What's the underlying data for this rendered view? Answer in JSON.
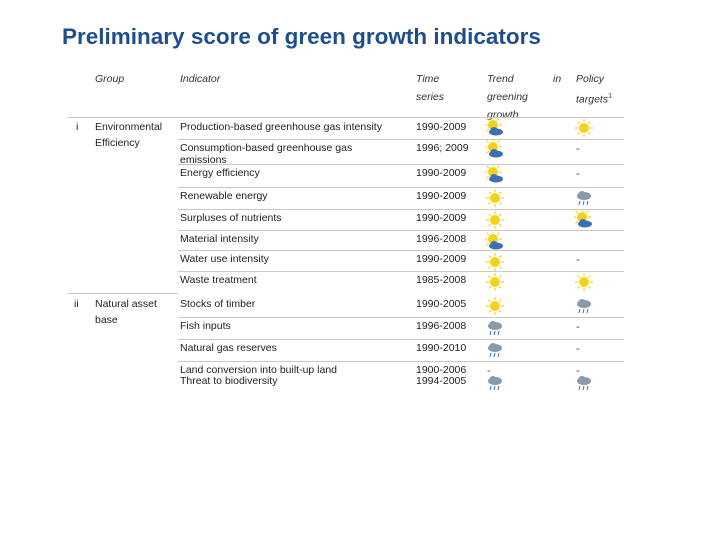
{
  "title": "Preliminary score of green growth indicators",
  "headers": {
    "group": "Group",
    "indicator": "Indicator",
    "time_l1": "Time",
    "time_l2": "series",
    "trend_l1": "Trend",
    "trend_in": "in",
    "trend_l2": "greening",
    "trend_l3": "growth",
    "policy_l1": "Policy",
    "policy_l2": "targets",
    "policy_sup": "1"
  },
  "groups": [
    {
      "num": "i",
      "name_l1": "Environmental",
      "name_l2": "Efficiency"
    },
    {
      "num": "ii",
      "name_l1": "Natural   asset",
      "name_l2": "base"
    }
  ],
  "rows": [
    {
      "indicator": "Production-based greenhouse gas intensity",
      "series": "1990-2009",
      "trend": "partly-cloudy",
      "target": "sunny"
    },
    {
      "indicator": "Consumption-based greenhouse gas",
      "indicator_l2": "emissions",
      "series": "1996; 2009",
      "trend": "partly-cloudy",
      "target": "-"
    },
    {
      "indicator": "Energy efficiency",
      "series": "1990-2009",
      "trend": "partly-cloudy",
      "target": "-"
    },
    {
      "indicator": "Renewable energy",
      "series": "1990-2009",
      "trend": "sunny",
      "target": "rainy"
    },
    {
      "indicator": "Surpluses of nutrients",
      "series": "1990-2009",
      "trend": "sunny",
      "target": "partly-cloudy"
    },
    {
      "indicator": "Material intensity",
      "series": "1996-2008",
      "trend": "partly-cloudy",
      "target": ""
    },
    {
      "indicator": "Water use intensity",
      "series": "1990-2009",
      "trend": "sunny",
      "target": "-"
    },
    {
      "indicator": "Waste treatment",
      "series": "1985-2008",
      "trend": "sunny",
      "target": "sunny"
    },
    {
      "indicator": "Stocks of timber",
      "series": "1990-2005",
      "trend": "sunny",
      "target": "rainy"
    },
    {
      "indicator": "Fish inputs",
      "series": "1996-2008",
      "trend": "rainy",
      "target": "-"
    },
    {
      "indicator": "Natural gas reserves",
      "series": "1990-2010",
      "trend": "rainy",
      "target": "-"
    },
    {
      "indicator": "Land conversion into built-up land",
      "series": "1900-2006",
      "trend": "-",
      "target": "-"
    },
    {
      "indicator": "Threat to biodiversity",
      "series": "1994-2005",
      "trend": "rainy",
      "target": "rainy"
    }
  ],
  "colors": {
    "title": "#1f4e8c",
    "sun": "#f5d21a",
    "cloud": "#3d6fb5",
    "rain_cloud": "#8a9aa8"
  }
}
